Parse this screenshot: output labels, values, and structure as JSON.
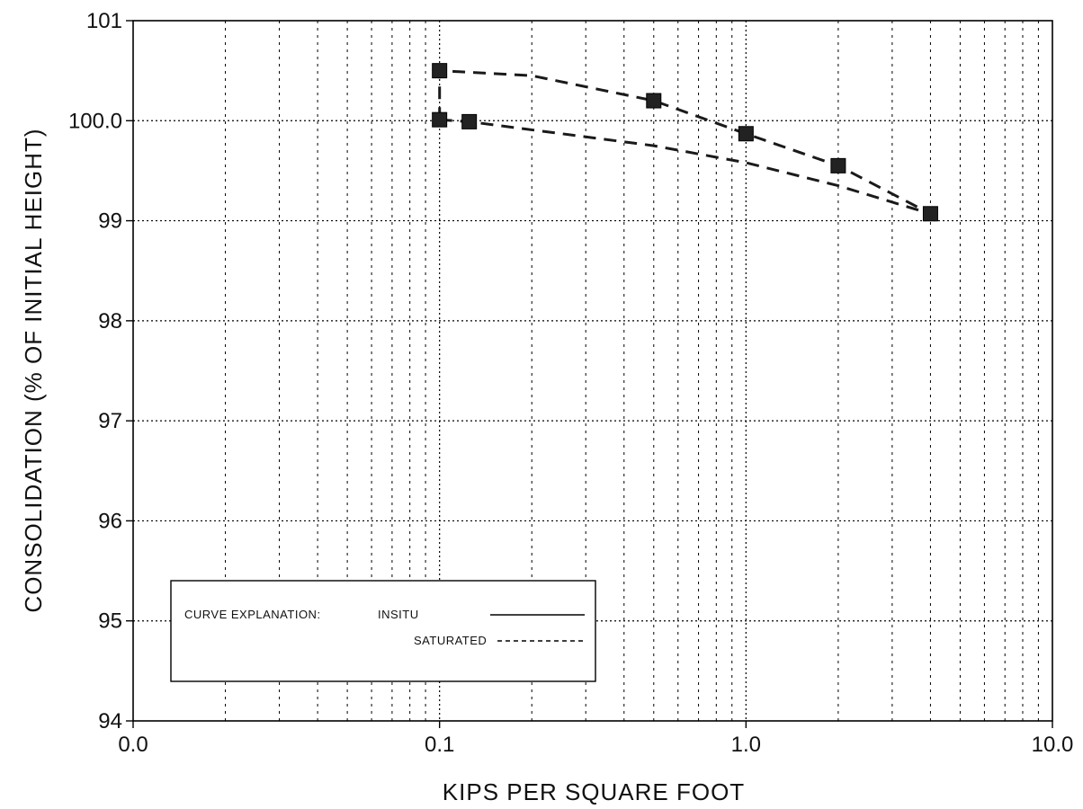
{
  "chart_data": {
    "type": "line",
    "x_scale": "log",
    "xlim": [
      0.01,
      10.0
    ],
    "ylim": [
      94,
      101
    ],
    "xlabel": "KIPS PER SQUARE FOOT",
    "ylabel": "CONSOLIDATION  (% OF INITIAL HEIGHT)",
    "x_tick_labels": [
      {
        "value": 0.01,
        "label": "0.0"
      },
      {
        "value": 0.1,
        "label": "0.1"
      },
      {
        "value": 1.0,
        "label": "1.0"
      },
      {
        "value": 10.0,
        "label": "10.0"
      }
    ],
    "y_tick_labels": [
      {
        "value": 94,
        "label": "94"
      },
      {
        "value": 95,
        "label": "95"
      },
      {
        "value": 96,
        "label": "96"
      },
      {
        "value": 97,
        "label": "97"
      },
      {
        "value": 98,
        "label": "98"
      },
      {
        "value": 99,
        "label": "99"
      },
      {
        "value": 100,
        "label": "100.0"
      },
      {
        "value": 101,
        "label": "101"
      }
    ],
    "grid": true,
    "legend": {
      "placement": "bottom-left",
      "title": "CURVE EXPLANATION:",
      "entries": [
        {
          "label": "INSITU",
          "style": "solid"
        },
        {
          "label": "SATURATED",
          "style": "dashed"
        }
      ]
    },
    "series": [
      {
        "style": "dashed",
        "color": "#1a1a1a",
        "points": [
          {
            "x": 0.1,
            "y": 100.01
          },
          {
            "x": 0.125,
            "y": 99.99
          },
          {
            "x": 0.5,
            "y": 99.75
          },
          {
            "x": 1.0,
            "y": 99.58
          },
          {
            "x": 2.0,
            "y": 99.35
          },
          {
            "x": 4.0,
            "y": 99.07
          }
        ]
      },
      {
        "style": "dashed",
        "color": "#1a1a1a",
        "points": [
          {
            "x": 0.1,
            "y": 100.01
          },
          {
            "x": 0.1,
            "y": 100.5
          },
          {
            "x": 0.2,
            "y": 100.45
          },
          {
            "x": 0.5,
            "y": 100.2
          },
          {
            "x": 1.0,
            "y": 99.87
          },
          {
            "x": 2.0,
            "y": 99.55
          },
          {
            "x": 4.0,
            "y": 99.07
          }
        ]
      }
    ],
    "markers": [
      {
        "x": 0.1,
        "y": 100.5
      },
      {
        "x": 0.1,
        "y": 100.01
      },
      {
        "x": 0.125,
        "y": 99.99
      },
      {
        "x": 0.5,
        "y": 100.2
      },
      {
        "x": 1.0,
        "y": 99.87
      },
      {
        "x": 2.0,
        "y": 99.55
      },
      {
        "x": 4.0,
        "y": 99.07
      }
    ],
    "marker_color": "#222222"
  }
}
